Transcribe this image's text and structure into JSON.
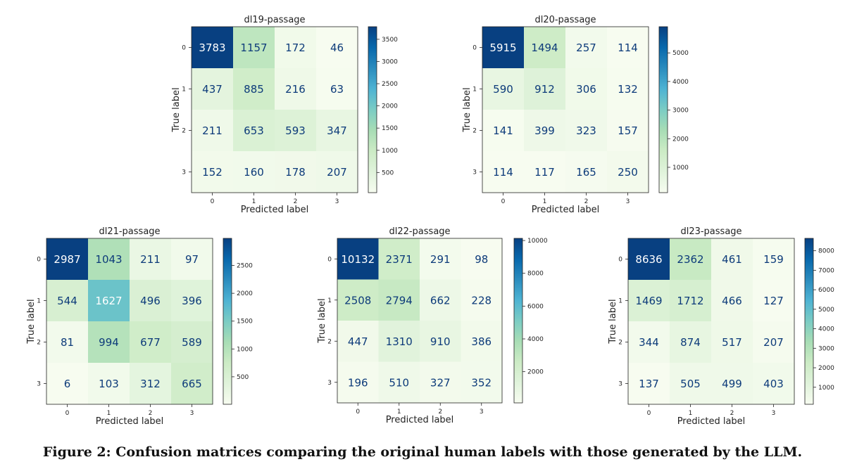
{
  "caption": "Figure 2: Confusion matrices comparing the original human labels with those generated by the LLM.",
  "chart_data": [
    {
      "type": "heatmap",
      "title": "dl19-passage",
      "xlabel": "Predicted label",
      "ylabel": "True label",
      "x_ticks": [
        "0",
        "1",
        "2",
        "3"
      ],
      "y_ticks": [
        "0",
        "1",
        "2",
        "3"
      ],
      "matrix": [
        [
          3783,
          1157,
          172,
          46
        ],
        [
          437,
          885,
          216,
          63
        ],
        [
          211,
          653,
          593,
          347
        ],
        [
          152,
          160,
          178,
          207
        ]
      ],
      "colormap": "GnBu",
      "colorbar_range": [
        46,
        3783
      ],
      "colorbar_ticks": [
        500,
        1000,
        1500,
        2000,
        2500,
        3000,
        3500
      ]
    },
    {
      "type": "heatmap",
      "title": "dl20-passage",
      "xlabel": "Predicted label",
      "ylabel": "True label",
      "x_ticks": [
        "0",
        "1",
        "2",
        "3"
      ],
      "y_ticks": [
        "0",
        "1",
        "2",
        "3"
      ],
      "matrix": [
        [
          5915,
          1494,
          257,
          114
        ],
        [
          590,
          912,
          306,
          132
        ],
        [
          141,
          399,
          323,
          157
        ],
        [
          114,
          117,
          165,
          250
        ]
      ],
      "colormap": "GnBu",
      "colorbar_range": [
        114,
        5915
      ],
      "colorbar_ticks": [
        1000,
        2000,
        3000,
        4000,
        5000
      ]
    },
    {
      "type": "heatmap",
      "title": "dl21-passage",
      "xlabel": "Predicted label",
      "ylabel": "True label",
      "x_ticks": [
        "0",
        "1",
        "2",
        "3"
      ],
      "y_ticks": [
        "0",
        "1",
        "2",
        "3"
      ],
      "matrix": [
        [
          2987,
          1043,
          211,
          97
        ],
        [
          544,
          1627,
          496,
          396
        ],
        [
          81,
          994,
          677,
          589
        ],
        [
          6,
          103,
          312,
          665
        ]
      ],
      "colormap": "GnBu",
      "colorbar_range": [
        6,
        2987
      ],
      "colorbar_ticks": [
        500,
        1000,
        1500,
        2000,
        2500
      ]
    },
    {
      "type": "heatmap",
      "title": "dl22-passage",
      "xlabel": "Predicted label",
      "ylabel": "True label",
      "x_ticks": [
        "0",
        "1",
        "2",
        "3"
      ],
      "y_ticks": [
        "0",
        "1",
        "2",
        "3"
      ],
      "matrix": [
        [
          10132,
          2371,
          291,
          98
        ],
        [
          2508,
          2794,
          662,
          228
        ],
        [
          447,
          1310,
          910,
          386
        ],
        [
          196,
          510,
          327,
          352
        ]
      ],
      "colormap": "GnBu",
      "colorbar_range": [
        98,
        10132
      ],
      "colorbar_ticks": [
        2000,
        4000,
        6000,
        8000,
        10000
      ]
    },
    {
      "type": "heatmap",
      "title": "dl23-passage",
      "xlabel": "Predicted label",
      "ylabel": "True label",
      "x_ticks": [
        "0",
        "1",
        "2",
        "3"
      ],
      "y_ticks": [
        "0",
        "1",
        "2",
        "3"
      ],
      "matrix": [
        [
          8636,
          2362,
          461,
          159
        ],
        [
          1469,
          1712,
          466,
          127
        ],
        [
          344,
          874,
          517,
          207
        ],
        [
          137,
          505,
          499,
          403
        ]
      ],
      "colormap": "GnBu",
      "colorbar_range": [
        127,
        8636
      ],
      "colorbar_ticks": [
        1000,
        2000,
        3000,
        4000,
        5000,
        6000,
        7000,
        8000
      ]
    }
  ]
}
